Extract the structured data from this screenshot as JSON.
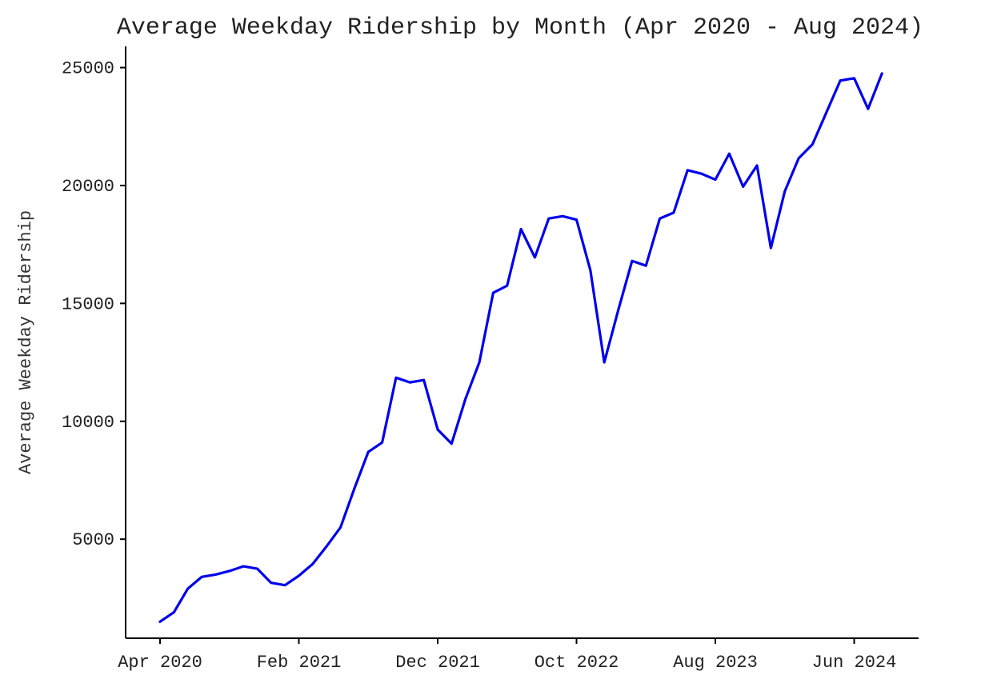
{
  "chart_data": {
    "type": "line",
    "title": "Average Weekday Ridership by Month (Apr 2020 - Aug 2024)",
    "xlabel": "",
    "ylabel": "Average Weekday Ridership",
    "ylim": [
      800,
      25900
    ],
    "grid": false,
    "legend": "none",
    "x_ticks": [
      {
        "label": "Apr 2020",
        "month_index": 0
      },
      {
        "label": "Feb 2021",
        "month_index": 10
      },
      {
        "label": "Dec 2021",
        "month_index": 20
      },
      {
        "label": "Oct 2022",
        "month_index": 30
      },
      {
        "label": "Aug 2023",
        "month_index": 40
      },
      {
        "label": "Jun 2024",
        "month_index": 50
      }
    ],
    "y_ticks": [
      {
        "label": "5000",
        "value": 5000
      },
      {
        "label": "10000",
        "value": 10000
      },
      {
        "label": "15000",
        "value": 15000
      },
      {
        "label": "20000",
        "value": 20000
      },
      {
        "label": "25000",
        "value": 25000
      }
    ],
    "x": [
      "Apr 2020",
      "May 2020",
      "Jun 2020",
      "Jul 2020",
      "Aug 2020",
      "Sep 2020",
      "Oct 2020",
      "Nov 2020",
      "Dec 2020",
      "Jan 2021",
      "Feb 2021",
      "Mar 2021",
      "Apr 2021",
      "May 2021",
      "Jun 2021",
      "Jul 2021",
      "Aug 2021",
      "Sep 2021",
      "Oct 2021",
      "Nov 2021",
      "Dec 2021",
      "Jan 2022",
      "Feb 2022",
      "Mar 2022",
      "Apr 2022",
      "May 2022",
      "Jun 2022",
      "Jul 2022",
      "Aug 2022",
      "Sep 2022",
      "Oct 2022",
      "Nov 2022",
      "Dec 2022",
      "Jan 2023",
      "Feb 2023",
      "Mar 2023",
      "Apr 2023",
      "May 2023",
      "Jun 2023",
      "Jul 2023",
      "Aug 2023",
      "Sep 2023",
      "Oct 2023",
      "Nov 2023",
      "Dec 2023",
      "Jan 2024",
      "Feb 2024",
      "Mar 2024",
      "Apr 2024",
      "May 2024",
      "Jun 2024",
      "Jul 2024",
      "Aug 2024"
    ],
    "series": [
      {
        "color": "#0000ee",
        "values": [
          1500,
          1900,
          2900,
          3400,
          3500,
          3650,
          3850,
          3750,
          3150,
          3050,
          3450,
          3950,
          4700,
          5500,
          7150,
          8700,
          9100,
          11850,
          11650,
          11750,
          9650,
          9050,
          10950,
          12500,
          15450,
          15750,
          18150,
          16950,
          18600,
          18700,
          18550,
          16400,
          12500,
          14700,
          16800,
          16600,
          18600,
          18850,
          20650,
          20500,
          20250,
          21350,
          19950,
          20850,
          17350,
          19750,
          21150,
          21750,
          23100,
          24450,
          24550,
          23250,
          24750
        ]
      }
    ]
  }
}
